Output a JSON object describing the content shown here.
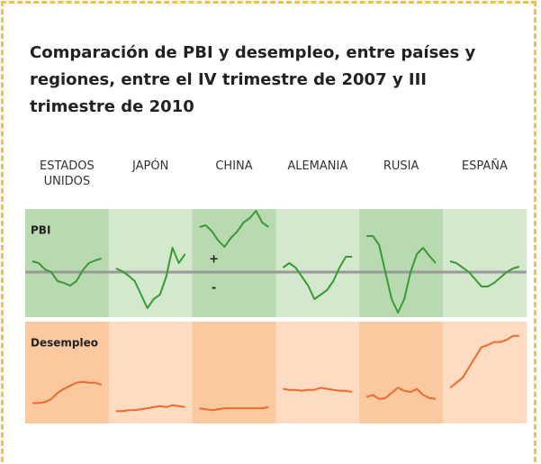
{
  "chart_data": {
    "type": "line",
    "title": "Comparación de PBI y desempleo, entre países y regiones, entre el IV trimestre de 2007 y III trimestre de 2010",
    "categories": [
      "ESTADOS UNIDOS",
      "JAPÓN",
      "CHINA",
      "ALEMANIA",
      "RUSIA",
      "ESPAÑA"
    ],
    "annotations": [
      "+",
      "-"
    ],
    "rows": [
      {
        "name": "PBI",
        "color": "#3a9b35",
        "ylim": [
          -50,
          70
        ],
        "zero_line": 0,
        "shades": [
          "#b9d9b0",
          "#d3e8cc"
        ],
        "series": [
          [
            12,
            10,
            3,
            0,
            -10,
            -12,
            -15,
            -10,
            2,
            10,
            13,
            15
          ],
          [
            4,
            1,
            -4,
            -10,
            -25,
            -40,
            -30,
            -25,
            -5,
            27,
            10,
            20
          ],
          [
            50,
            52,
            45,
            35,
            28,
            38,
            45,
            55,
            60,
            68,
            55,
            50
          ],
          [
            5,
            10,
            5,
            -5,
            -15,
            -30,
            -25,
            -20,
            -10,
            5,
            17,
            17
          ],
          [
            40,
            40,
            30,
            0,
            -30,
            -45,
            -30,
            0,
            20,
            27,
            18,
            10
          ],
          [
            12,
            10,
            5,
            0,
            -8,
            -16,
            -16,
            -12,
            -6,
            0,
            4,
            6
          ]
        ]
      },
      {
        "name": "Desempleo",
        "color": "#f06a2c",
        "ylim": [
          0,
          100
        ],
        "shades": [
          "#fddcc2",
          "#fbc9a0"
        ],
        "series": [
          [
            20,
            20,
            21,
            24,
            30,
            34,
            37,
            40,
            41,
            40,
            40,
            38
          ],
          [
            12,
            12,
            13,
            13,
            14,
            15,
            16,
            17,
            16,
            18,
            17,
            16
          ],
          [
            15,
            14,
            13,
            14,
            15,
            15,
            15,
            15,
            15,
            15,
            15,
            16
          ],
          [
            34,
            33,
            33,
            32,
            33,
            33,
            35,
            34,
            33,
            32,
            32,
            31
          ],
          [
            26,
            28,
            24,
            25,
            30,
            35,
            32,
            31,
            34,
            28,
            25,
            24
          ],
          [
            35,
            40,
            45,
            55,
            65,
            75,
            77,
            80,
            80,
            82,
            86,
            86
          ]
        ]
      }
    ]
  }
}
